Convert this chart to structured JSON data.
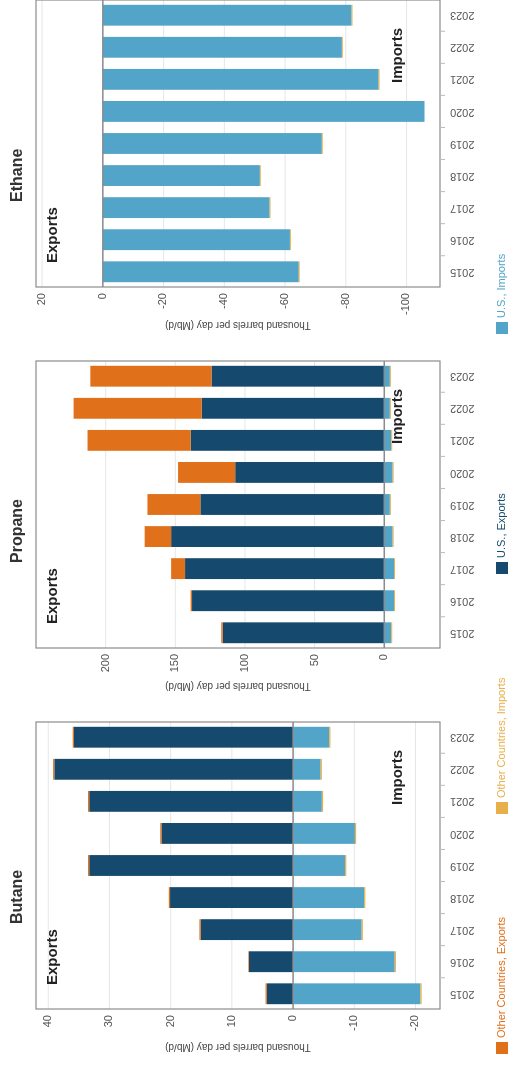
{
  "chart_data": [
    {
      "type": "bar",
      "orientation": "horizontal",
      "title": "Butane",
      "xlabel": "Thousand barrels per day (Mb/d)",
      "categories": [
        "2023",
        "2022",
        "2021",
        "2020",
        "2019",
        "2018",
        "2017",
        "2016",
        "2015"
      ],
      "stacked": true,
      "xlim": [
        42,
        -24
      ],
      "xticks": [
        40,
        30,
        20,
        10,
        0,
        -10,
        -20
      ],
      "grid": "x",
      "legend": "right",
      "annotations": [
        "Exports",
        "Imports"
      ],
      "ref_lines": [
        {
          "axis": "x",
          "value": 0,
          "color": "#8c8c8c"
        }
      ],
      "series": [
        {
          "name": "U.S., Exports",
          "color": "#154a6e",
          "values": [
            35.8,
            39.0,
            33.3,
            21.5,
            33.3,
            20.1,
            15.1,
            7.2,
            4.3
          ]
        },
        {
          "name": "Other Countries, Exports",
          "color": "#e07019",
          "values": [
            0.2,
            0.2,
            0.2,
            0.2,
            0.2,
            0.2,
            0.2,
            0.1,
            0.2
          ]
        },
        {
          "name": "U.S., Imports",
          "color": "#52a4c9",
          "values": [
            -5.9,
            -4.5,
            -4.7,
            -10.1,
            -8.5,
            -11.6,
            -11.2,
            -16.6,
            -20.8
          ]
        },
        {
          "name": "Other Countries, Imports",
          "color": "#e8b04a",
          "values": [
            -0.2,
            -0.2,
            -0.2,
            -0.2,
            -0.2,
            -0.2,
            -0.2,
            -0.2,
            -0.2
          ]
        }
      ]
    },
    {
      "type": "bar",
      "orientation": "horizontal",
      "title": "Propane",
      "xlabel": "Thousand barrels per day (Mb/d)",
      "categories": [
        "2023",
        "2022",
        "2021",
        "2020",
        "2019",
        "2018",
        "2017",
        "2016",
        "2015"
      ],
      "stacked": true,
      "xlim": [
        250,
        -40
      ],
      "xticks": [
        200,
        150,
        100,
        50,
        0
      ],
      "grid": "x",
      "annotations": [
        "Exports",
        "Imports"
      ],
      "ref_lines": [
        {
          "axis": "x",
          "value": 0,
          "color": "#8c8c8c"
        }
      ],
      "series": [
        {
          "color": "#154a6e",
          "values": [
            124,
            131,
            139,
            107,
            132,
            153,
            143,
            138,
            116
          ]
        },
        {
          "color": "#e07019",
          "values": [
            87,
            92,
            74,
            41,
            38,
            19,
            10,
            1,
            1
          ]
        },
        {
          "color": "#52a4c9",
          "values": [
            -4,
            -4,
            -5,
            -6,
            -4,
            -6,
            -7,
            -7,
            -5
          ]
        },
        {
          "color": "#e8b04a",
          "values": [
            -0.7,
            -0.7,
            -0.7,
            -0.7,
            -0.7,
            -0.7,
            -0.7,
            -0.7,
            -0.7
          ]
        }
      ]
    },
    {
      "type": "bar",
      "orientation": "horizontal",
      "title": "Ethane",
      "xlabel": "Thousand barrels per day (Mb/d)",
      "categories": [
        "2023",
        "2022",
        "2021",
        "2020",
        "2019",
        "2018",
        "2017",
        "2016",
        "2015"
      ],
      "stacked": true,
      "xlim": [
        22,
        -111
      ],
      "xticks": [
        20,
        0,
        -20,
        -40,
        -60,
        -80,
        -100
      ],
      "grid": "x",
      "annotations": [
        "Exports",
        "Imports"
      ],
      "ref_lines": [
        {
          "axis": "x",
          "value": 0,
          "color": "#8c8c8c"
        }
      ],
      "series": [
        {
          "color": "#52a4c9",
          "values": [
            -81.9,
            -78.7,
            -90.8,
            -105.9,
            -72.1,
            -51.7,
            -54.9,
            -61.6,
            -64.5
          ]
        },
        {
          "color": "#e8b04a",
          "values": [
            -0.3,
            -0.3,
            -0.3,
            null,
            -0.3,
            -0.3,
            -0.3,
            -0.3,
            -0.3
          ]
        }
      ]
    }
  ]
}
